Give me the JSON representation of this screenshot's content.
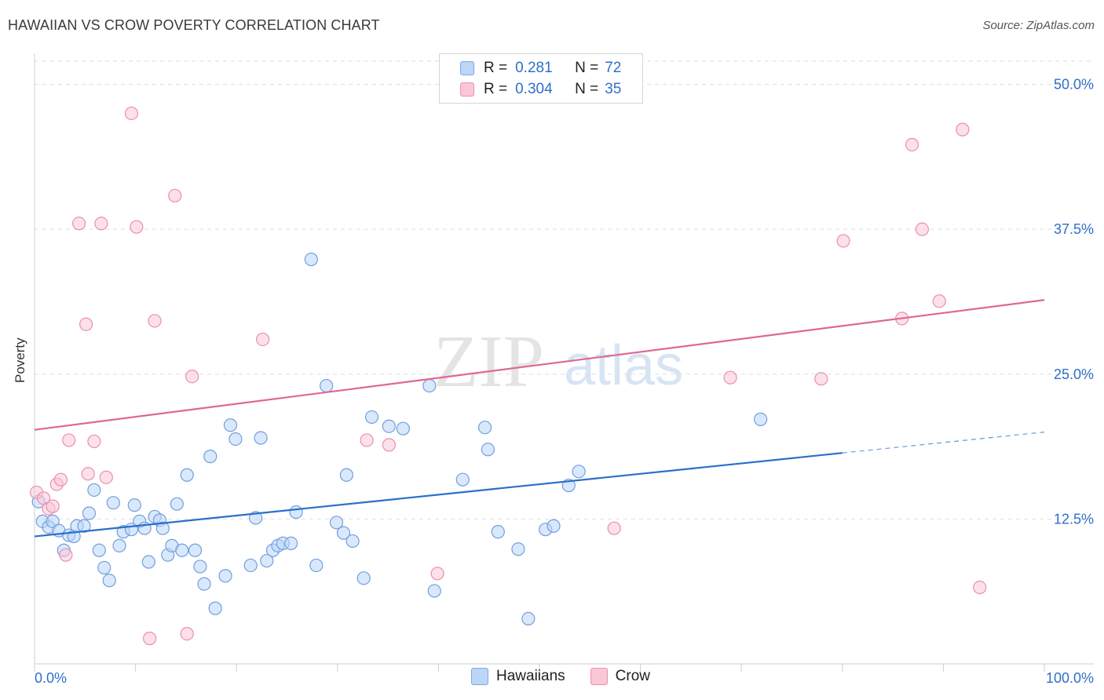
{
  "title": "HAWAIIAN VS CROW POVERTY CORRELATION CHART",
  "source": "Source: ZipAtlas.com",
  "watermark": {
    "zip": "ZIP",
    "atlas": "atlas"
  },
  "legend_stats": [
    {
      "r_label": "R =",
      "r_value": "0.281",
      "n_label": "N =",
      "n_value": "72"
    },
    {
      "r_label": "R =",
      "r_value": "0.304",
      "n_label": "N =",
      "n_value": "35"
    }
  ],
  "legend_series": [
    "Hawaiians",
    "Crow"
  ],
  "colors": {
    "blue_fill": "#bcd6f7",
    "blue_stroke": "#6f9fe0",
    "blue_line": "#2a6fcb",
    "pink_fill": "#f9c8d7",
    "pink_stroke": "#ec8eab",
    "pink_line": "#e06890"
  },
  "chart_data": {
    "type": "scatter",
    "title": "HAWAIIAN VS CROW POVERTY CORRELATION CHART",
    "xlabel": "",
    "ylabel": "Poverty",
    "xlim": [
      0,
      100
    ],
    "ylim": [
      0,
      52
    ],
    "x_tick_labels": [
      "0.0%",
      "100.0%"
    ],
    "y_ticks": [
      12.5,
      25.0,
      37.5,
      50.0
    ],
    "y_tick_labels": [
      "12.5%",
      "25.0%",
      "37.5%",
      "50.0%"
    ],
    "grid": true,
    "legend_position": "top-center",
    "series": [
      {
        "name": "Hawaiians",
        "r": 0.281,
        "n": 72,
        "trend": {
          "x0": 0,
          "y0": 11.0,
          "x1": 80,
          "y1": 18.2,
          "dashed_to_x": 100,
          "dashed_to_y": 20.0
        },
        "points": [
          [
            0.4,
            14.0
          ],
          [
            0.8,
            12.3
          ],
          [
            1.4,
            11.8
          ],
          [
            1.8,
            12.3
          ],
          [
            2.4,
            11.5
          ],
          [
            2.9,
            9.8
          ],
          [
            3.4,
            11.1
          ],
          [
            3.9,
            11.0
          ],
          [
            4.2,
            11.9
          ],
          [
            4.9,
            11.9
          ],
          [
            5.4,
            13.0
          ],
          [
            5.9,
            15.0
          ],
          [
            6.4,
            9.8
          ],
          [
            6.9,
            8.3
          ],
          [
            7.4,
            7.2
          ],
          [
            7.8,
            13.9
          ],
          [
            8.4,
            10.2
          ],
          [
            8.8,
            11.4
          ],
          [
            9.6,
            11.6
          ],
          [
            9.9,
            13.7
          ],
          [
            10.4,
            12.3
          ],
          [
            10.9,
            11.7
          ],
          [
            11.3,
            8.8
          ],
          [
            11.9,
            12.7
          ],
          [
            12.4,
            12.4
          ],
          [
            12.7,
            11.7
          ],
          [
            13.2,
            9.4
          ],
          [
            13.6,
            10.2
          ],
          [
            14.1,
            13.8
          ],
          [
            14.6,
            9.8
          ],
          [
            15.1,
            16.3
          ],
          [
            15.9,
            9.8
          ],
          [
            16.4,
            8.4
          ],
          [
            16.8,
            6.9
          ],
          [
            17.4,
            17.9
          ],
          [
            17.9,
            4.8
          ],
          [
            18.9,
            7.6
          ],
          [
            19.4,
            20.6
          ],
          [
            19.9,
            19.4
          ],
          [
            21.4,
            8.5
          ],
          [
            21.9,
            12.6
          ],
          [
            22.4,
            19.5
          ],
          [
            23.0,
            8.9
          ],
          [
            23.6,
            9.8
          ],
          [
            24.1,
            10.2
          ],
          [
            24.6,
            10.4
          ],
          [
            25.4,
            10.4
          ],
          [
            25.9,
            13.1
          ],
          [
            27.4,
            34.9
          ],
          [
            27.9,
            8.5
          ],
          [
            28.9,
            24.0
          ],
          [
            29.9,
            12.2
          ],
          [
            30.6,
            11.3
          ],
          [
            30.9,
            16.3
          ],
          [
            31.5,
            10.6
          ],
          [
            32.6,
            7.4
          ],
          [
            33.4,
            21.3
          ],
          [
            35.1,
            20.5
          ],
          [
            36.5,
            20.3
          ],
          [
            39.1,
            24.0
          ],
          [
            39.6,
            6.3
          ],
          [
            42.4,
            15.9
          ],
          [
            44.6,
            20.4
          ],
          [
            44.9,
            18.5
          ],
          [
            45.9,
            11.4
          ],
          [
            47.9,
            9.9
          ],
          [
            48.9,
            3.9
          ],
          [
            50.6,
            11.6
          ],
          [
            51.4,
            11.9
          ],
          [
            52.9,
            15.4
          ],
          [
            53.9,
            16.6
          ],
          [
            71.9,
            21.1
          ]
        ]
      },
      {
        "name": "Crow",
        "r": 0.304,
        "n": 35,
        "trend": {
          "x0": 0,
          "y0": 20.2,
          "x1": 100,
          "y1": 31.4
        },
        "points": [
          [
            0.2,
            14.8
          ],
          [
            0.9,
            14.3
          ],
          [
            1.4,
            13.4
          ],
          [
            1.8,
            13.6
          ],
          [
            2.2,
            15.5
          ],
          [
            2.6,
            15.9
          ],
          [
            3.1,
            9.4
          ],
          [
            3.4,
            19.3
          ],
          [
            4.4,
            38.0
          ],
          [
            5.1,
            29.3
          ],
          [
            5.3,
            16.4
          ],
          [
            5.9,
            19.2
          ],
          [
            6.6,
            38.0
          ],
          [
            7.1,
            16.1
          ],
          [
            9.6,
            47.5
          ],
          [
            10.1,
            37.7
          ],
          [
            11.4,
            2.2
          ],
          [
            11.9,
            29.6
          ],
          [
            13.9,
            40.4
          ],
          [
            15.1,
            2.6
          ],
          [
            15.6,
            24.8
          ],
          [
            22.6,
            28.0
          ],
          [
            32.9,
            19.3
          ],
          [
            35.1,
            18.9
          ],
          [
            39.9,
            7.8
          ],
          [
            57.4,
            11.7
          ],
          [
            68.9,
            24.7
          ],
          [
            77.9,
            24.6
          ],
          [
            80.1,
            36.5
          ],
          [
            85.9,
            29.8
          ],
          [
            86.9,
            44.8
          ],
          [
            87.9,
            37.5
          ],
          [
            89.6,
            31.3
          ],
          [
            91.9,
            46.1
          ],
          [
            93.6,
            6.6
          ]
        ]
      }
    ]
  }
}
